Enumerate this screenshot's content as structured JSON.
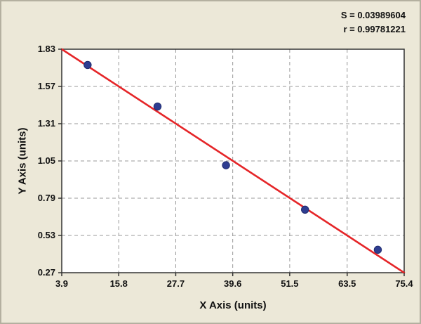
{
  "stats": {
    "s_label": "S = 0.03989604",
    "r_label": "r = 0.99781221"
  },
  "chart_data": {
    "type": "scatter",
    "title": "",
    "xlabel": "X Axis (units)",
    "ylabel": "Y Axis (units)",
    "xlim": [
      3.9,
      75.4
    ],
    "ylim": [
      0.27,
      1.83
    ],
    "x_ticks": [
      3.9,
      15.8,
      27.7,
      39.6,
      51.5,
      63.5,
      75.4
    ],
    "y_ticks": [
      0.27,
      0.53,
      0.79,
      1.05,
      1.31,
      1.57,
      1.83
    ],
    "grid": "dashed",
    "legend": "none",
    "points": [
      [
        9.3,
        1.72
      ],
      [
        23.9,
        1.43
      ],
      [
        38.2,
        1.02
      ],
      [
        54.7,
        0.71
      ],
      [
        69.9,
        0.43
      ]
    ],
    "regression_line": {
      "x1": 3.9,
      "y1": 1.83,
      "x2": 75.4,
      "y2": 0.27
    },
    "annotations": [
      "S = 0.03989604",
      "r = 0.99781221"
    ],
    "colors": {
      "line": "#e52528",
      "point": "#2e3d91",
      "point_edge": "#1f2b6e",
      "grid": "#999999",
      "axis": "#333333",
      "plot_bg": "#ffffff",
      "page_bg": "#ece8d8"
    }
  }
}
